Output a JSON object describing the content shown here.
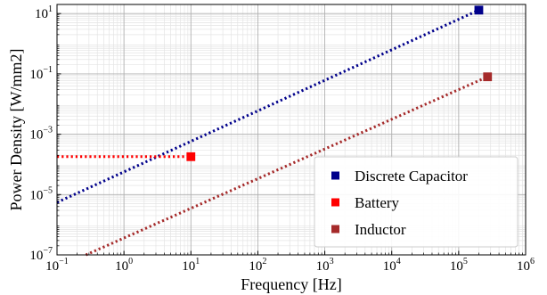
{
  "chart_data": {
    "type": "scatter",
    "title": "",
    "xlabel": "Frequency [Hz]",
    "ylabel": "Power Density [W/mm2]",
    "x_scale": "log",
    "y_scale": "log",
    "xlim": [
      0.1,
      1000000
    ],
    "ylim": [
      1e-07,
      20
    ],
    "x_ticks": [
      {
        "base": "10",
        "exp": "−1",
        "value": 0.1
      },
      {
        "base": "10",
        "exp": "0",
        "value": 1
      },
      {
        "base": "10",
        "exp": "1",
        "value": 10
      },
      {
        "base": "10",
        "exp": "2",
        "value": 100
      },
      {
        "base": "10",
        "exp": "3",
        "value": 1000
      },
      {
        "base": "10",
        "exp": "4",
        "value": 10000
      },
      {
        "base": "10",
        "exp": "5",
        "value": 100000
      },
      {
        "base": "10",
        "exp": "6",
        "value": 1000000
      }
    ],
    "y_ticks": [
      {
        "base": "10",
        "exp": "−7",
        "value": 1e-07
      },
      {
        "base": "10",
        "exp": "−5",
        "value": 1e-05
      },
      {
        "base": "10",
        "exp": "−3",
        "value": 0.001
      },
      {
        "base": "10",
        "exp": "−1",
        "value": 0.1
      },
      {
        "base": "10",
        "exp": "1",
        "value": 10
      }
    ],
    "grid": true,
    "legend_position": "bottom-right",
    "series": [
      {
        "name": "Discrete Capacitor",
        "color": "#00008b",
        "points": [
          {
            "x": 200000,
            "y": 13
          }
        ],
        "line": [
          {
            "x": 0.1,
            "y": 5.5e-06
          },
          {
            "x": 200000,
            "y": 13
          }
        ]
      },
      {
        "name": "Battery",
        "color": "#ff0000",
        "points": [
          {
            "x": 10,
            "y": 0.00018
          }
        ],
        "line": [
          {
            "x": 0.1,
            "y": 0.00018
          },
          {
            "x": 10,
            "y": 0.00018
          }
        ]
      },
      {
        "name": "Inductor",
        "color": "#a52a2a",
        "points": [
          {
            "x": 270000,
            "y": 0.08
          }
        ],
        "line": [
          {
            "x": 0.27,
            "y": 1e-07
          },
          {
            "x": 270000,
            "y": 0.08
          }
        ]
      }
    ]
  }
}
